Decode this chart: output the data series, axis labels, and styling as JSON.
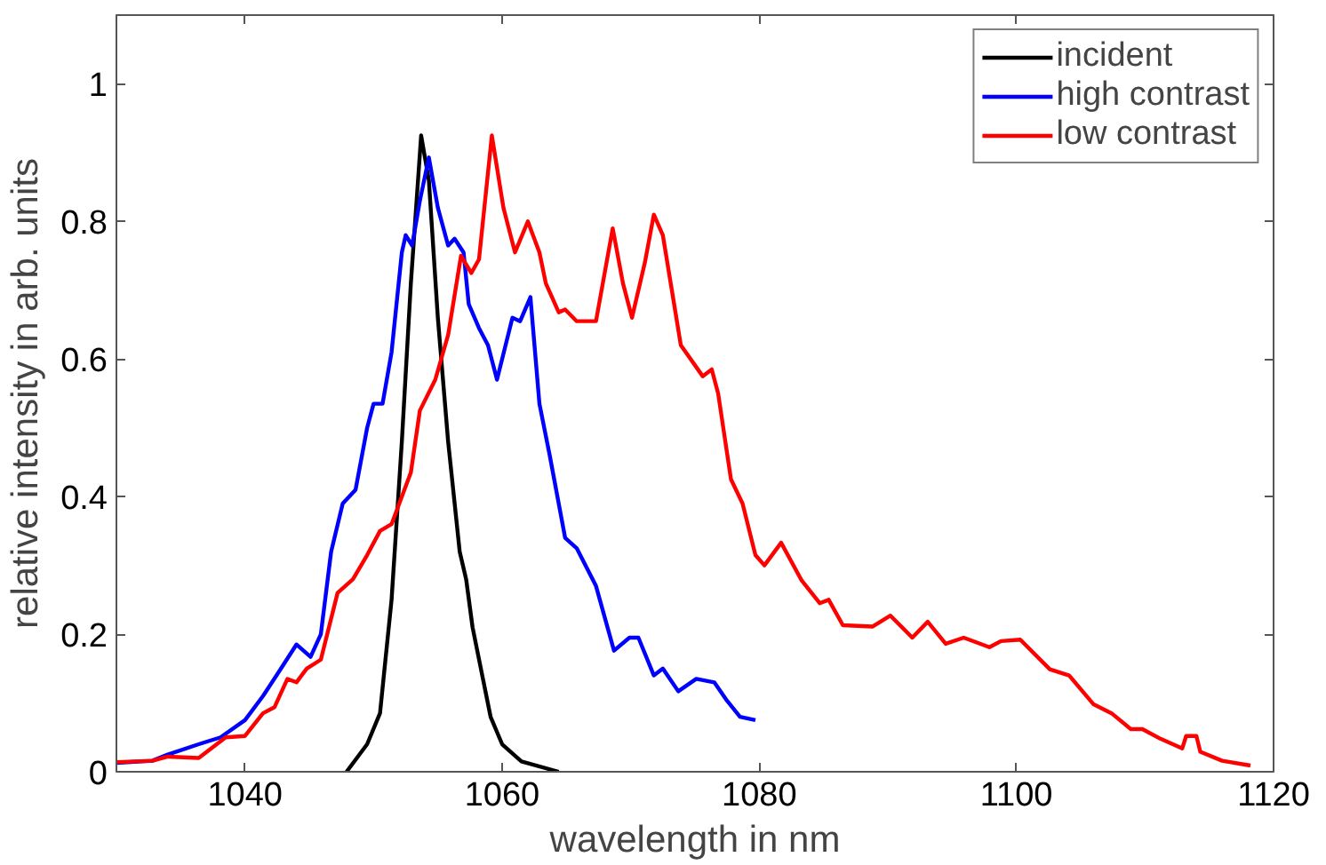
{
  "chart_data": {
    "type": "line",
    "xlabel": "wavelength in nm",
    "ylabel": "relative intensity in arb. units",
    "xlim": [
      1030,
      1120
    ],
    "ylim": [
      0,
      1.1
    ],
    "xticks": [
      1040,
      1060,
      1080,
      1100,
      1120
    ],
    "yticks": [
      0,
      0.2,
      0.4,
      0.6,
      0.8,
      1
    ],
    "grid": false,
    "legend": "top right",
    "marker": "none",
    "line_style": "solid",
    "series": [
      {
        "name": "incident",
        "color": "#000000",
        "x": [
          1047.9,
          1049.5,
          1050.5,
          1051.4,
          1052.2,
          1052.9,
          1053.7,
          1054.3,
          1055.0,
          1055.8,
          1056.7,
          1057.2,
          1057.7,
          1059.1,
          1060.0,
          1061.5,
          1064.4
        ],
        "values": [
          0,
          0.04,
          0.085,
          0.25,
          0.48,
          0.71,
          0.925,
          0.86,
          0.66,
          0.48,
          0.32,
          0.28,
          0.21,
          0.08,
          0.04,
          0.015,
          0
        ]
      },
      {
        "name": "high contrast",
        "color": "#0000ff",
        "x": [
          1030,
          1032.8,
          1034,
          1036.4,
          1038.1,
          1040,
          1041.4,
          1042.8,
          1044,
          1045.1,
          1045.9,
          1046.7,
          1047.6,
          1048.6,
          1049.5,
          1050.0,
          1050.7,
          1051.4,
          1052.2,
          1052.5,
          1053,
          1053.6,
          1054.3,
          1055,
          1055.8,
          1056.3,
          1057,
          1057.4,
          1058.2,
          1058.9,
          1059.6,
          1060.8,
          1061.4,
          1062.2,
          1062.9,
          1063.7,
          1064.9,
          1065.8,
          1067.3,
          1068.7,
          1069.9,
          1070.6,
          1071.8,
          1072.5,
          1073.7,
          1075.1,
          1076.5,
          1077.5,
          1078.5,
          1079.7
        ],
        "values": [
          0.013,
          0.016,
          0.025,
          0.04,
          0.05,
          0.075,
          0.11,
          0.15,
          0.185,
          0.167,
          0.2,
          0.32,
          0.39,
          0.41,
          0.5,
          0.535,
          0.535,
          0.61,
          0.755,
          0.78,
          0.765,
          0.83,
          0.893,
          0.82,
          0.765,
          0.775,
          0.755,
          0.68,
          0.645,
          0.62,
          0.57,
          0.66,
          0.655,
          0.69,
          0.535,
          0.46,
          0.34,
          0.325,
          0.27,
          0.176,
          0.195,
          0.195,
          0.14,
          0.15,
          0.117,
          0.135,
          0.13,
          0.103,
          0.08,
          0.075
        ]
      },
      {
        "name": "low contrast",
        "color": "#ff0000",
        "x": [
          1030,
          1032.8,
          1034,
          1036.4,
          1038.5,
          1040,
          1041.4,
          1042.3,
          1043.3,
          1044,
          1044.8,
          1045.9,
          1047.2,
          1048.4,
          1049.5,
          1050.5,
          1051.4,
          1052.9,
          1053.6,
          1054.8,
          1055.8,
          1056.8,
          1057.6,
          1058.2,
          1059.2,
          1060.1,
          1061,
          1062.0,
          1062.9,
          1063.4,
          1064.4,
          1064.9,
          1065.8,
          1067.3,
          1068.6,
          1069.4,
          1070.1,
          1071.1,
          1071.8,
          1072.5,
          1073.9,
          1075.6,
          1076.3,
          1076.8,
          1077.8,
          1078.7,
          1079.7,
          1080.4,
          1081.7,
          1083.3,
          1084.7,
          1085.4,
          1086.5,
          1088.8,
          1090.2,
          1091.9,
          1093.1,
          1094.5,
          1095.9,
          1097.9,
          1098.8,
          1100.3,
          1102.6,
          1104.1,
          1106,
          1107.4,
          1108.9,
          1109.8,
          1111.2,
          1112.9,
          1113.2,
          1114,
          1114.3,
          1116,
          1118.2
        ],
        "values": [
          0.014,
          0.016,
          0.022,
          0.02,
          0.05,
          0.052,
          0.085,
          0.094,
          0.135,
          0.13,
          0.15,
          0.163,
          0.26,
          0.28,
          0.315,
          0.35,
          0.36,
          0.435,
          0.525,
          0.57,
          0.635,
          0.75,
          0.725,
          0.745,
          0.925,
          0.82,
          0.755,
          0.8,
          0.755,
          0.71,
          0.668,
          0.672,
          0.655,
          0.655,
          0.79,
          0.71,
          0.66,
          0.74,
          0.81,
          0.78,
          0.62,
          0.575,
          0.585,
          0.55,
          0.425,
          0.39,
          0.315,
          0.3,
          0.333,
          0.278,
          0.245,
          0.25,
          0.213,
          0.211,
          0.227,
          0.195,
          0.218,
          0.186,
          0.195,
          0.181,
          0.19,
          0.192,
          0.149,
          0.14,
          0.098,
          0.085,
          0.062,
          0.062,
          0.048,
          0.034,
          0.052,
          0.052,
          0.029,
          0.016,
          0.009
        ]
      }
    ]
  }
}
